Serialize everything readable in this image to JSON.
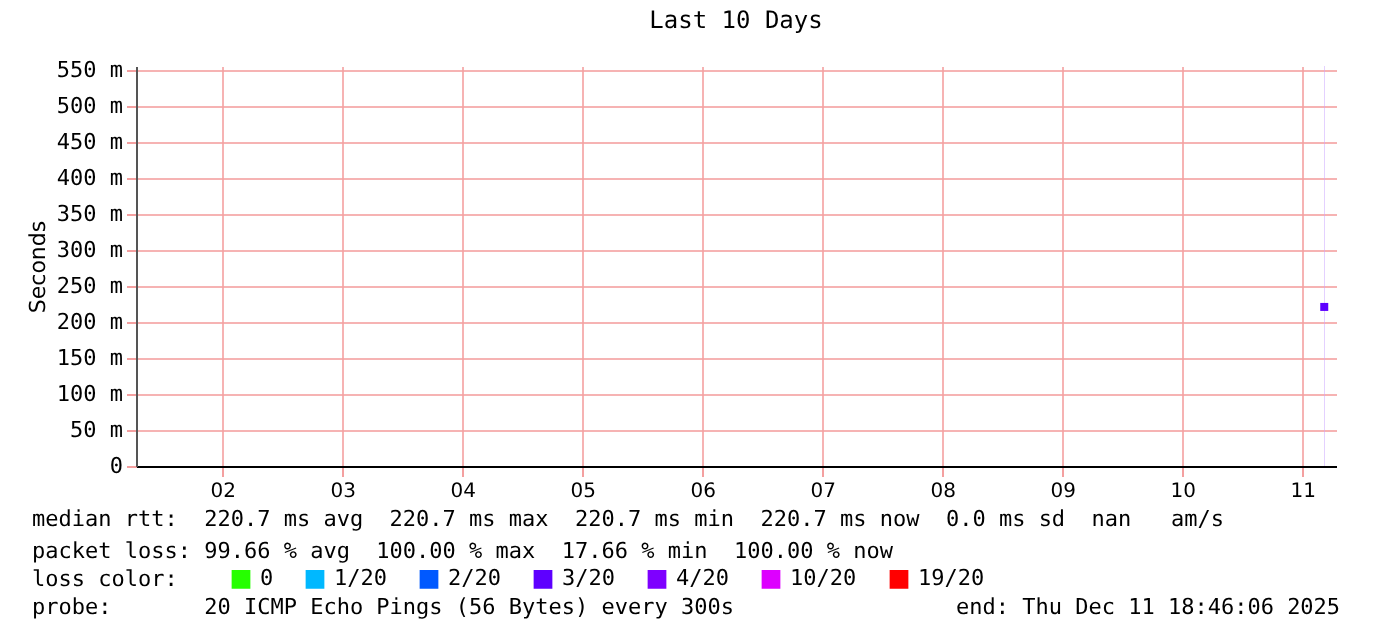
{
  "chart_data": {
    "type": "line",
    "title": "Last 10 Days",
    "ylabel": "Seconds",
    "x": [
      "2025-12-11T16:25"
    ],
    "series": [
      {
        "name": "0",
        "color": "#26ff00",
        "values": [
          null
        ]
      },
      {
        "name": "1/20",
        "color": "#00b8ff",
        "values": [
          null
        ]
      },
      {
        "name": "2/20",
        "color": "#0059ff",
        "values": [
          null
        ]
      },
      {
        "name": "3/20",
        "color": "#5e00ff",
        "values": [
          220.7
        ]
      },
      {
        "name": "4/20",
        "color": "#7e00ff",
        "values": [
          null
        ]
      },
      {
        "name": "10/20",
        "color": "#dd00ff",
        "values": [
          null
        ]
      },
      {
        "name": "19/20",
        "color": "#ff0000",
        "values": [
          null
        ]
      }
    ],
    "legend_title": "loss color:",
    "legend": "bottom left",
    "marker": "square",
    "grid": true,
    "xlim": [
      "2025-12-01T18:46",
      "2025-12-11T18:46"
    ],
    "xticks": [
      {
        "value": "2025-12-02T12:00",
        "label": "02"
      },
      {
        "value": "2025-12-03T12:00",
        "label": "03"
      },
      {
        "value": "2025-12-04T12:00",
        "label": "04"
      },
      {
        "value": "2025-12-05T12:00",
        "label": "05"
      },
      {
        "value": "2025-12-06T12:00",
        "label": "06"
      },
      {
        "value": "2025-12-07T12:00",
        "label": "07"
      },
      {
        "value": "2025-12-08T12:00",
        "label": "08"
      },
      {
        "value": "2025-12-09T12:00",
        "label": "09"
      },
      {
        "value": "2025-12-10T12:00",
        "label": "10"
      },
      {
        "value": "2025-12-11T12:00",
        "label": "11"
      }
    ],
    "ylim": [
      0,
      555
    ],
    "yticks": [
      0,
      {
        "value": 50,
        "label": "50 m"
      },
      {
        "value": 100,
        "label": "100 m"
      },
      {
        "value": 150,
        "label": "150 m"
      },
      {
        "value": 200,
        "label": "200 m"
      },
      {
        "value": 250,
        "label": "250 m"
      },
      {
        "value": 300,
        "label": "300 m"
      },
      {
        "value": 350,
        "label": "350 m"
      },
      {
        "value": 400,
        "label": "400 m"
      },
      {
        "value": 450,
        "label": "450 m"
      },
      {
        "value": 500,
        "label": "500 m"
      },
      {
        "value": 550,
        "label": "550 m"
      }
    ],
    "bands": [
      {
        "axis": "x",
        "from": "2025-12-11T16:22",
        "to": "2025-12-11T16:28",
        "color": "#c9a3ff"
      }
    ],
    "annotations": [
      "median rtt:  220.7 ms avg  220.7 ms max  220.7 ms min  220.7 ms now  0.0 ms sd  nan   am/s",
      "packet loss: 99.66 % avg  100.00 % max  17.66 % min  100.00 % now",
      "probe:       20 ICMP Echo Pings (56 Bytes) every 300s",
      "end: Thu Dec 11 18:46:06 2025"
    ]
  }
}
